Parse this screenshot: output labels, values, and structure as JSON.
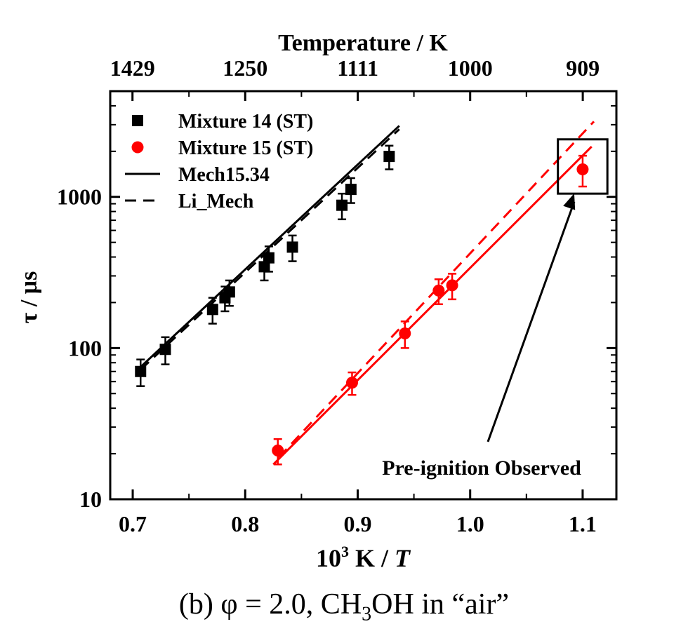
{
  "chart_data": {
    "type": "scatter",
    "title": "",
    "xlabel_main": "10",
    "xlabel_sup": "3",
    "xlabel_rest": " K / ",
    "xlabel_var": "T",
    "ylabel": "τ / μs",
    "top_axis_label": "Temperature / K",
    "xlim": [
      0.68,
      1.13
    ],
    "ylim": [
      10,
      5000
    ],
    "yscale": "log",
    "grid": false,
    "legend_position": "top-left",
    "x_ticks": [
      "0.7",
      "0.8",
      "0.9",
      "1.0",
      "1.1"
    ],
    "y_ticks": [
      "10",
      "100",
      "1000"
    ],
    "top_ticks": [
      "1429",
      "1250",
      "1111",
      "1000",
      "909"
    ],
    "series": [
      {
        "name": "Mixture 14 (ST)",
        "marker": "square",
        "color": "#000000",
        "x": [
          0.707,
          0.729,
          0.771,
          0.782,
          0.786,
          0.817,
          0.821,
          0.842,
          0.886,
          0.894,
          0.928
        ],
        "y": [
          70,
          98,
          180,
          215,
          235,
          345,
          395,
          465,
          880,
          1120,
          1850
        ],
        "err_low": [
          14,
          20,
          35,
          40,
          45,
          65,
          75,
          90,
          170,
          210,
          330
        ],
        "err_high": [
          14,
          20,
          35,
          40,
          45,
          65,
          75,
          90,
          170,
          210,
          330
        ]
      },
      {
        "name": "Mixture 15 (ST)",
        "marker": "circle",
        "color": "#ff0000",
        "x": [
          0.829,
          0.895,
          0.942,
          0.972,
          0.984,
          1.1
        ],
        "y": [
          21,
          59,
          125,
          240,
          260,
          1520
        ],
        "err_low": [
          4,
          10,
          25,
          45,
          50,
          350
        ],
        "err_high": [
          4,
          10,
          25,
          45,
          50,
          350
        ]
      },
      {
        "name": "Mech15.34",
        "style": "solid",
        "color": "#000000",
        "x": [
          0.707,
          0.937
        ],
        "y": [
          75,
          2950
        ]
      },
      {
        "name": "Li_Mech",
        "style": "dashed",
        "color": "#000000",
        "x": [
          0.707,
          0.937
        ],
        "y": [
          72,
          2800
        ]
      },
      {
        "name": "",
        "style": "solid",
        "color": "#ff0000",
        "x": [
          0.825,
          1.108
        ],
        "y": [
          17,
          2150
        ]
      },
      {
        "name": "",
        "style": "dashed",
        "color": "#ff0000",
        "x": [
          0.83,
          1.11
        ],
        "y": [
          19,
          3150
        ]
      }
    ],
    "annotation": {
      "text": "Pre-ignition Observed",
      "arrow_target": [
        1.095,
        1100
      ],
      "box": {
        "x": [
          1.078,
          1.122
        ],
        "y": [
          1050,
          2400
        ]
      }
    }
  },
  "caption": {
    "prefix": "(b)  φ = 2.0, CH",
    "sub": "3",
    "suffix": "OH in “air”"
  }
}
